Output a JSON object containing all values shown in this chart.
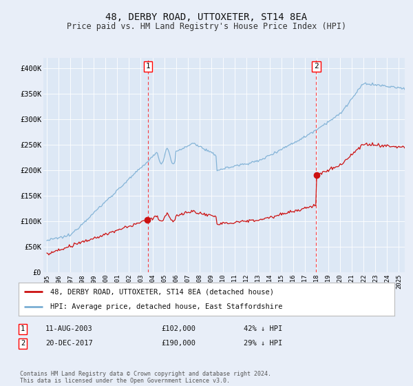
{
  "title": "48, DERBY ROAD, UTTOXETER, ST14 8EA",
  "subtitle": "Price paid vs. HM Land Registry's House Price Index (HPI)",
  "background_color": "#e8eef8",
  "plot_bg_color": "#dde8f5",
  "ylim": [
    0,
    420000
  ],
  "yticks": [
    0,
    50000,
    100000,
    150000,
    200000,
    250000,
    300000,
    350000,
    400000
  ],
  "ytick_labels": [
    "£0",
    "£50K",
    "£100K",
    "£150K",
    "£200K",
    "£250K",
    "£300K",
    "£350K",
    "£400K"
  ],
  "xstart_year": 1995,
  "xend_year": 2025,
  "transaction1_date": 2003.62,
  "transaction1_price": 102000,
  "transaction1_label": "1",
  "transaction1_text": "11-AUG-2003",
  "transaction1_amount": "£102,000",
  "transaction1_hpi": "42% ↓ HPI",
  "transaction2_date": 2017.96,
  "transaction2_price": 190000,
  "transaction2_label": "2",
  "transaction2_text": "20-DEC-2017",
  "transaction2_amount": "£190,000",
  "transaction2_hpi": "29% ↓ HPI",
  "hpi_line_color": "#7aaed4",
  "price_line_color": "#cc1111",
  "dot_color": "#cc1111",
  "legend_label1": "48, DERBY ROAD, UTTOXETER, ST14 8EA (detached house)",
  "legend_label2": "HPI: Average price, detached house, East Staffordshire",
  "footer": "Contains HM Land Registry data © Crown copyright and database right 2024.\nThis data is licensed under the Open Government Licence v3.0."
}
